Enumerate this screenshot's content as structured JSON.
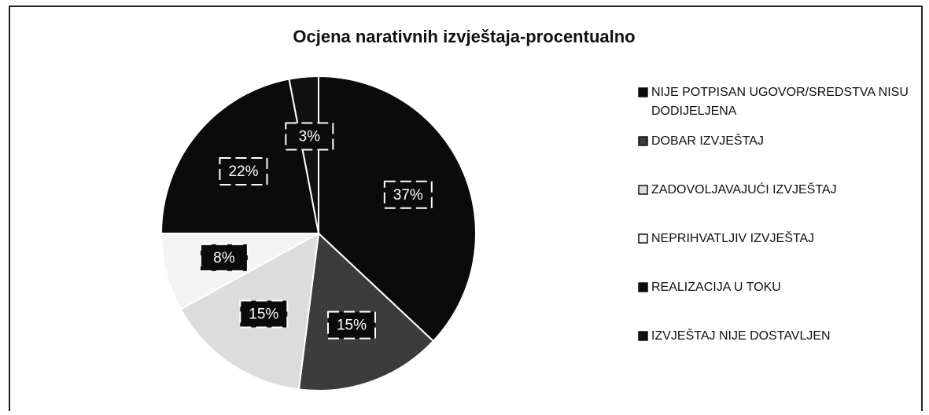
{
  "chart_data": {
    "type": "pie",
    "title": "Ocjena narativnih izvještaja-procentualno",
    "categories": [
      "NIJE POTPISAN UGOVOR/SREDSTVA NISU DODIJELJENA",
      "DOBAR IZVJEŠTAJ",
      "ZADOVOLJAVAJUĆI IZVJEŠTAJ",
      "NEPRIHVATLJIV IZVJEŠTAJ",
      "REALIZACIJA U TOKU",
      "IZVJEŠTAJ NIJE DOSTAVLJEN"
    ],
    "values": [
      37,
      15,
      15,
      8,
      22,
      3
    ],
    "value_labels": [
      "37%",
      "15%",
      "15%",
      "8%",
      "22%",
      "3%"
    ],
    "colors": [
      "#0b0b0b",
      "#3c3c3c",
      "#dcdcdc",
      "#f4f4f4",
      "#0b0b0b",
      "#111111"
    ],
    "legend": "right"
  }
}
